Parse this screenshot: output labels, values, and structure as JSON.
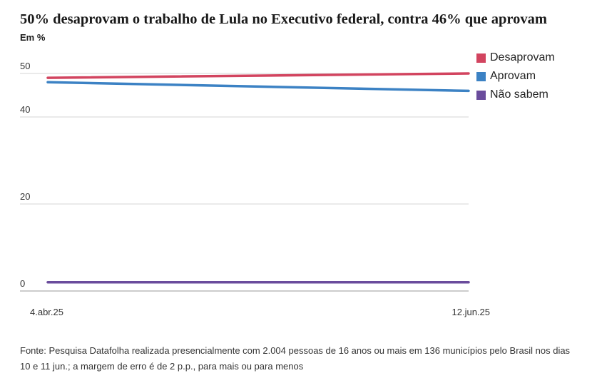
{
  "header": {
    "title": "50% desaprovam o trabalho de Lula no Executivo federal, contra 46% que aprovam",
    "unit": "Em %"
  },
  "footer": {
    "source": "Fonte: Pesquisa Datafolha realizada presencialmente com 2.004 pessoas de 16 anos ou mais em 136 municípios pelo Brasil nos dias 10 e 11 jun.; a margem de erro é de 2 p.p., para mais ou para menos"
  },
  "chart_data": {
    "type": "line",
    "title": "50% desaprovam o trabalho de Lula no Executivo federal, contra 46% que aprovam",
    "ylabel": "Em %",
    "x": [
      "4.abr.25",
      "12.jun.25"
    ],
    "y_ticks": [
      0,
      20,
      40,
      50
    ],
    "ylim": [
      0,
      50
    ],
    "grid": true,
    "legend_position": "top-right",
    "series": [
      {
        "name": "Desaprovam",
        "color": "#d2445f",
        "values": [
          49,
          50
        ]
      },
      {
        "name": "Aprovam",
        "color": "#3c82c4",
        "values": [
          48,
          46
        ]
      },
      {
        "name": "Não sabem",
        "color": "#6a4c9c",
        "values": [
          2,
          2
        ]
      }
    ]
  }
}
